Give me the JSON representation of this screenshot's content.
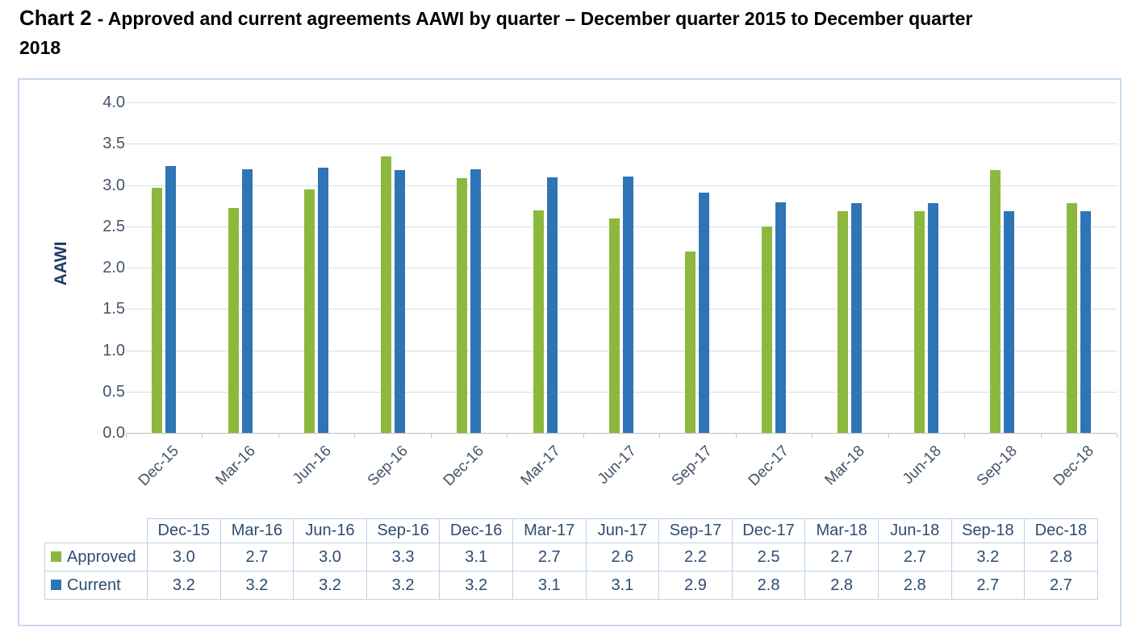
{
  "title": {
    "prefix": "Chart 2",
    "rest": "- Approved and current agreements AAWI by quarter – December quarter 2015 to December quarter",
    "line2": "2018"
  },
  "colors": {
    "approved": "#8CB93D",
    "current": "#2E75B6",
    "axis_text": "#44546A",
    "table_text": "#2E4B73",
    "grid": "#D5DEE8",
    "axis_line": "#BFBFBF",
    "frame_border": "#C9DAEE",
    "table_border": "#BCD0E8",
    "y_title_text": "#1F3C64"
  },
  "chart_data": {
    "type": "bar",
    "title": "Chart 2 - Approved and current agreements AAWI by quarter – December quarter 2015 to December quarter 2018",
    "xlabel": "",
    "ylabel": "AAWI",
    "ylim": [
      0.0,
      4.0
    ],
    "ytick_step": 0.5,
    "yticks": [
      "4.0",
      "3.5",
      "3.0",
      "2.5",
      "2.0",
      "1.5",
      "1.0",
      "0.5",
      "0.0"
    ],
    "grid": true,
    "legend_position": "data-table-left",
    "categories": [
      "Dec-15",
      "Mar-16",
      "Jun-16",
      "Sep-16",
      "Dec-16",
      "Mar-17",
      "Jun-17",
      "Sep-17",
      "Dec-17",
      "Mar-18",
      "Jun-18",
      "Sep-18",
      "Dec-18"
    ],
    "series": [
      {
        "name": "Approved",
        "color_key": "approved",
        "values": [
          3.0,
          2.7,
          3.0,
          3.3,
          3.1,
          2.7,
          2.6,
          2.2,
          2.5,
          2.7,
          2.7,
          3.2,
          2.8
        ],
        "bar_heights": [
          2.97,
          2.72,
          2.95,
          3.35,
          3.08,
          2.69,
          2.6,
          2.2,
          2.5,
          2.68,
          2.68,
          3.18,
          2.78
        ]
      },
      {
        "name": "Current",
        "color_key": "current",
        "values": [
          3.2,
          3.2,
          3.2,
          3.2,
          3.2,
          3.1,
          3.1,
          2.9,
          2.8,
          2.8,
          2.8,
          2.7,
          2.7
        ],
        "bar_heights": [
          3.23,
          3.19,
          3.21,
          3.18,
          3.19,
          3.09,
          3.1,
          2.91,
          2.79,
          2.78,
          2.78,
          2.68,
          2.68
        ]
      }
    ]
  },
  "table": {
    "corner_label": ""
  }
}
